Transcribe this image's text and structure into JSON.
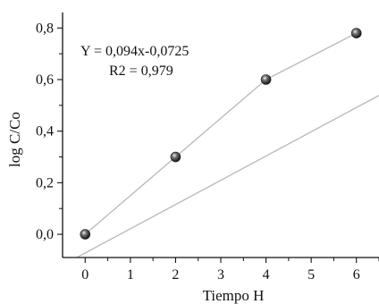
{
  "chart_data": {
    "type": "scatter",
    "xlabel": "Tiempo H",
    "ylabel": "log C/Co",
    "xlim": [
      -0.5,
      6.5
    ],
    "ylim": [
      -0.09,
      0.86
    ],
    "xticks": [
      0,
      1,
      2,
      3,
      4,
      5,
      6
    ],
    "xtick_labels": [
      "0",
      "1",
      "2",
      "3",
      "4",
      "5",
      "6"
    ],
    "yticks": [
      0.0,
      0.2,
      0.4,
      0.6,
      0.8
    ],
    "ytick_labels": [
      "0,0",
      "0,2",
      "0,4",
      "0,6",
      "0,8"
    ],
    "grid": false,
    "series": [
      {
        "points": [
          {
            "x": 0,
            "y": 0.0
          },
          {
            "x": 2,
            "y": 0.3
          },
          {
            "x": 4,
            "y": 0.6
          },
          {
            "x": 6,
            "y": 0.78
          }
        ]
      }
    ],
    "trendline": {
      "slope": 0.094,
      "intercept": -0.0725
    },
    "annotations": [
      "Y = 0,094x-0,0725",
      "R2 = 0,979"
    ],
    "colors": {
      "line": "#b8b8b8",
      "marker": "#111111",
      "axis": "#111111"
    }
  }
}
